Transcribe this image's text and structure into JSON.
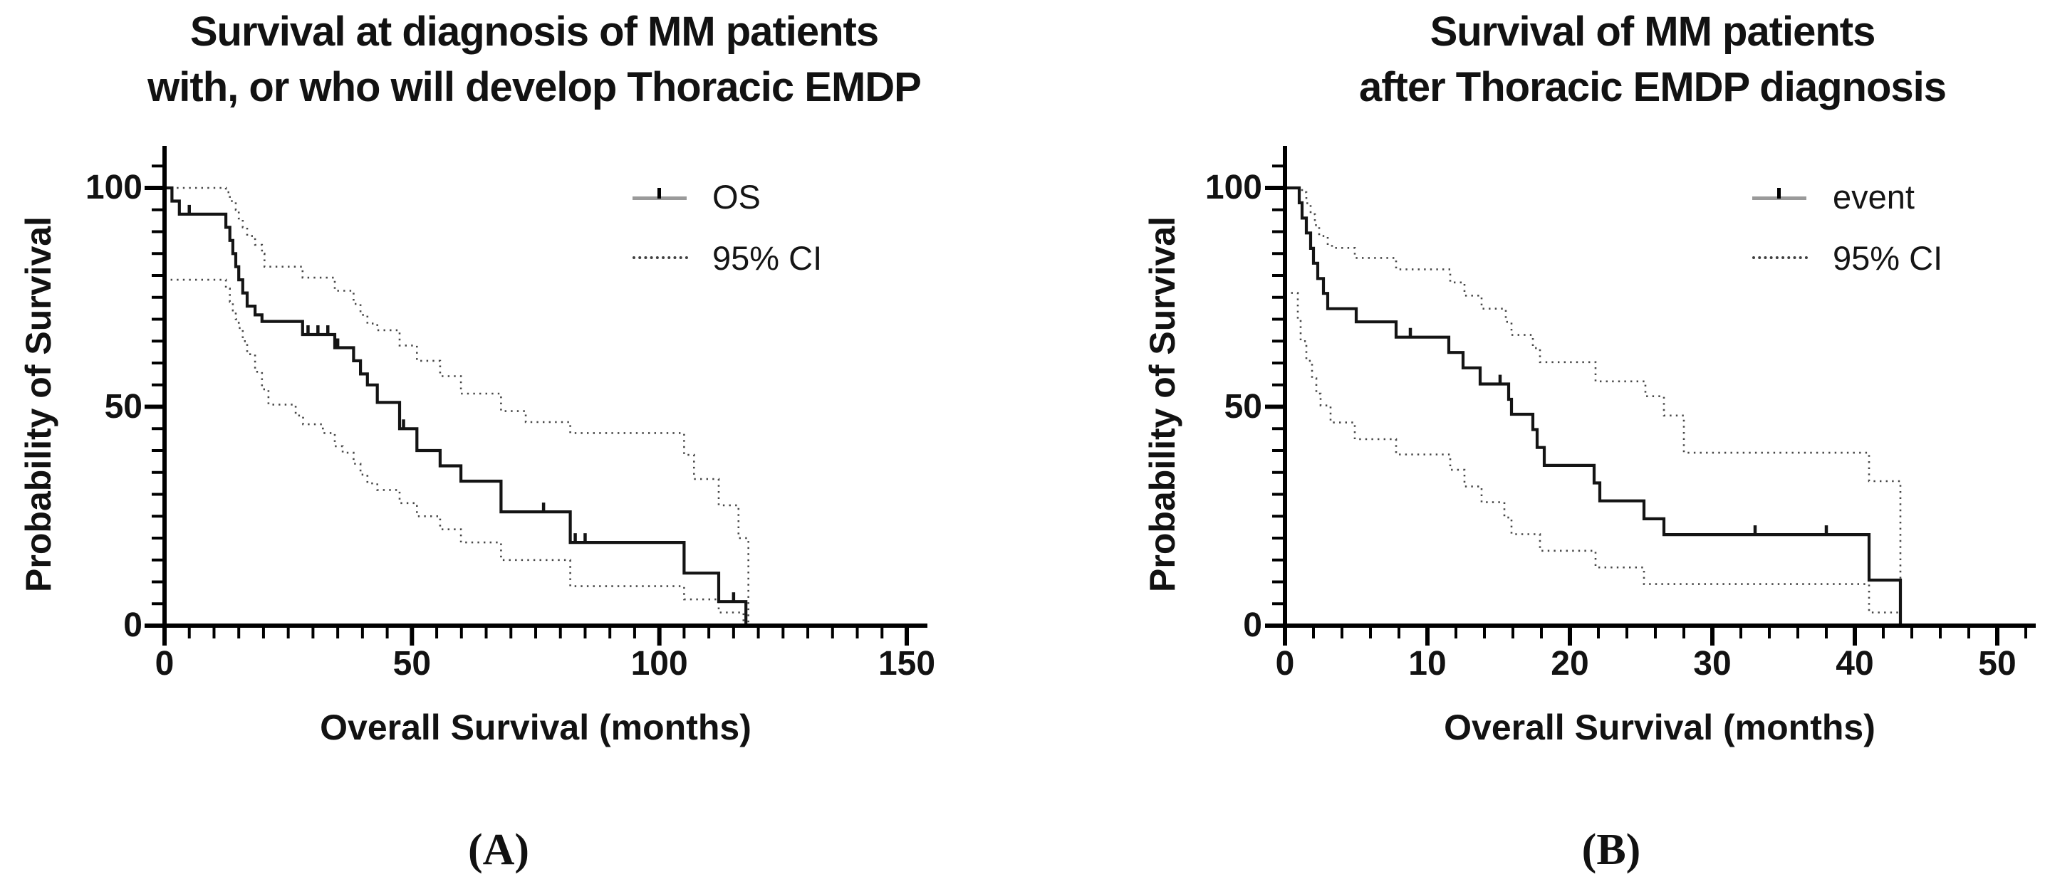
{
  "figure_type": "kaplan-meier-survival-figure",
  "colors": {
    "background": "#ffffff",
    "curve": "#141414",
    "ci_dotted": "#474747",
    "axis": "#000000",
    "text": "#121212",
    "legend_line_sample": "#9a9a9a"
  },
  "chart_data": [
    {
      "panel": "A",
      "panel_label": "(A)",
      "type": "line",
      "subtype": "kaplan-meier-step",
      "title_lines": [
        "Survival at diagnosis of MM patients",
        "with, or who will develop Thoracic EMDP"
      ],
      "xlabel": "Overall Survival (months)",
      "ylabel": "Probability of Survival",
      "xlim": [
        0,
        150
      ],
      "ylim": [
        0,
        100
      ],
      "x_major_ticks": [
        0,
        50,
        100,
        150
      ],
      "x_minor_step": 5,
      "x_minor_max": 150,
      "y_major_ticks": [
        0,
        50,
        100
      ],
      "y_minor_step": 5,
      "y_minor_max": 105,
      "grid": "off",
      "legend_position": "top-right-inside",
      "legend": [
        {
          "label": "OS",
          "style": "solid-with-censor-tick"
        },
        {
          "label": "95% CI",
          "style": "dotted"
        }
      ],
      "series": [
        {
          "name": "OS",
          "style": "solid",
          "steps": [
            [
              0,
              100
            ],
            [
              1.5,
              97
            ],
            [
              3,
              94
            ],
            [
              12.4,
              91
            ],
            [
              13.2,
              88
            ],
            [
              13.8,
              85
            ],
            [
              14.4,
              82
            ],
            [
              15,
              79
            ],
            [
              15.8,
              76
            ],
            [
              16.7,
              73
            ],
            [
              18.3,
              71
            ],
            [
              19.7,
              69.5
            ],
            [
              27.9,
              66.5
            ],
            [
              34.4,
              63.5
            ],
            [
              38.2,
              60.5
            ],
            [
              39.6,
              57.5
            ],
            [
              41,
              55
            ],
            [
              43,
              51
            ],
            [
              47.5,
              45
            ],
            [
              51,
              40
            ],
            [
              55.7,
              36.5
            ],
            [
              59.9,
              33
            ],
            [
              68,
              26
            ],
            [
              82,
              19
            ],
            [
              105,
              12
            ],
            [
              112,
              5.5
            ],
            [
              117.5,
              0
            ]
          ],
          "censor_x": [
            5,
            29,
            31,
            33,
            35,
            48.3,
            76.6,
            83,
            85,
            115
          ]
        },
        {
          "name": "95% CI upper",
          "style": "dotted",
          "steps": [
            [
              0,
              100
            ],
            [
              12.4,
              99
            ],
            [
              13.2,
              97
            ],
            [
              14.4,
              95
            ],
            [
              15,
              93
            ],
            [
              15.8,
              91
            ],
            [
              16.7,
              89
            ],
            [
              18.3,
              87
            ],
            [
              19.7,
              85
            ],
            [
              20.2,
              82
            ],
            [
              27.9,
              79.5
            ],
            [
              34.4,
              76.5
            ],
            [
              38.2,
              73.5
            ],
            [
              39.6,
              71
            ],
            [
              41,
              69
            ],
            [
              43,
              67.5
            ],
            [
              47.5,
              64
            ],
            [
              51,
              60.5
            ],
            [
              55.7,
              57
            ],
            [
              59.9,
              53
            ],
            [
              68,
              49
            ],
            [
              73,
              46.5
            ],
            [
              82,
              44
            ],
            [
              105,
              39
            ],
            [
              107,
              33.5
            ],
            [
              112,
              27.5
            ],
            [
              116,
              20
            ],
            [
              118,
              0
            ]
          ],
          "censor_x": []
        },
        {
          "name": "95% CI lower",
          "style": "dotted",
          "steps": [
            [
              0,
              79
            ],
            [
              12.4,
              77
            ],
            [
              13.2,
              74
            ],
            [
              13.8,
              72
            ],
            [
              14.4,
              70
            ],
            [
              15,
              68
            ],
            [
              15.8,
              65
            ],
            [
              16.7,
              62
            ],
            [
              18.3,
              58
            ],
            [
              19.7,
              54
            ],
            [
              21,
              50.5
            ],
            [
              26.5,
              48
            ],
            [
              28,
              46
            ],
            [
              32,
              44
            ],
            [
              34.4,
              41
            ],
            [
              36,
              39.5
            ],
            [
              38.2,
              37
            ],
            [
              39.6,
              34.5
            ],
            [
              41,
              32.5
            ],
            [
              43,
              31
            ],
            [
              47.5,
              28
            ],
            [
              51,
              25
            ],
            [
              55.7,
              22
            ],
            [
              59.9,
              19
            ],
            [
              68,
              15
            ],
            [
              82,
              9
            ],
            [
              105,
              6
            ],
            [
              112,
              3
            ],
            [
              117,
              0
            ]
          ],
          "censor_x": []
        }
      ]
    },
    {
      "panel": "B",
      "panel_label": "(B)",
      "type": "line",
      "subtype": "kaplan-meier-step",
      "title_lines": [
        "Survival of MM patients",
        "after Thoracic EMDP diagnosis"
      ],
      "xlabel": "Overall Survival (months)",
      "ylabel": "Probability of Survival",
      "xlim": [
        0,
        50
      ],
      "ylim": [
        0,
        100
      ],
      "x_major_ticks": [
        0,
        10,
        20,
        30,
        40,
        50
      ],
      "x_minor_step": 2,
      "x_minor_max": 52,
      "y_major_ticks": [
        0,
        50,
        100
      ],
      "y_minor_step": 5,
      "y_minor_max": 105,
      "grid": "off",
      "legend_position": "top-right-inside",
      "legend": [
        {
          "label": "event",
          "style": "solid-with-censor-tick"
        },
        {
          "label": "95% CI",
          "style": "dotted"
        }
      ],
      "series": [
        {
          "name": "event",
          "style": "solid",
          "steps": [
            [
              0,
              100
            ],
            [
              1,
              96.6
            ],
            [
              1.2,
              93.1
            ],
            [
              1.5,
              89.7
            ],
            [
              1.8,
              86.2
            ],
            [
              2,
              82.8
            ],
            [
              2.3,
              79.3
            ],
            [
              2.7,
              75.9
            ],
            [
              3,
              72.4
            ],
            [
              5,
              69.4
            ],
            [
              7.8,
              65.9
            ],
            [
              11.5,
              62.4
            ],
            [
              12.5,
              58.9
            ],
            [
              13.7,
              55.2
            ],
            [
              15.7,
              51.7
            ],
            [
              15.9,
              48.3
            ],
            [
              17.4,
              44.8
            ],
            [
              17.7,
              40.7
            ],
            [
              18.2,
              36.6
            ],
            [
              21.7,
              32.6
            ],
            [
              22.1,
              28.5
            ],
            [
              25.2,
              24.4
            ],
            [
              26.6,
              20.8
            ],
            [
              41,
              10.4
            ],
            [
              43.2,
              0
            ]
          ],
          "censor_x": [
            8.8,
            15.1,
            33,
            38
          ]
        },
        {
          "name": "95% CI upper",
          "style": "dotted",
          "steps": [
            [
              0,
              100
            ],
            [
              1.2,
              99
            ],
            [
              1.5,
              96.5
            ],
            [
              1.8,
              94
            ],
            [
              2.1,
              91.5
            ],
            [
              2.4,
              89
            ],
            [
              3,
              87
            ],
            [
              3.3,
              86.3
            ],
            [
              4.9,
              84
            ],
            [
              7.8,
              81.4
            ],
            [
              11.6,
              78.4
            ],
            [
              12.6,
              75.4
            ],
            [
              13.8,
              72.4
            ],
            [
              15.5,
              69.4
            ],
            [
              15.9,
              66.4
            ],
            [
              17.4,
              63.4
            ],
            [
              17.9,
              60.2
            ],
            [
              21.8,
              55.8
            ],
            [
              25.3,
              52.4
            ],
            [
              26.6,
              48
            ],
            [
              28,
              39.5
            ],
            [
              41,
              33
            ],
            [
              43.2,
              0
            ]
          ],
          "censor_x": []
        },
        {
          "name": "95% CI lower",
          "style": "dotted",
          "steps": [
            [
              0,
              76
            ],
            [
              0.9,
              70
            ],
            [
              1.1,
              65
            ],
            [
              1.5,
              60.5
            ],
            [
              1.9,
              56.5
            ],
            [
              2.2,
              53
            ],
            [
              2.5,
              50.3
            ],
            [
              3.2,
              46.4
            ],
            [
              4.9,
              42.6
            ],
            [
              7.8,
              39.1
            ],
            [
              11.6,
              35.6
            ],
            [
              12.6,
              31.8
            ],
            [
              13.8,
              28.2
            ],
            [
              15.4,
              24.7
            ],
            [
              15.9,
              20.9
            ],
            [
              17.9,
              17.1
            ],
            [
              21.8,
              13.3
            ],
            [
              25.2,
              9.5
            ],
            [
              41,
              3
            ],
            [
              43.2,
              0
            ]
          ],
          "censor_x": []
        }
      ]
    }
  ]
}
